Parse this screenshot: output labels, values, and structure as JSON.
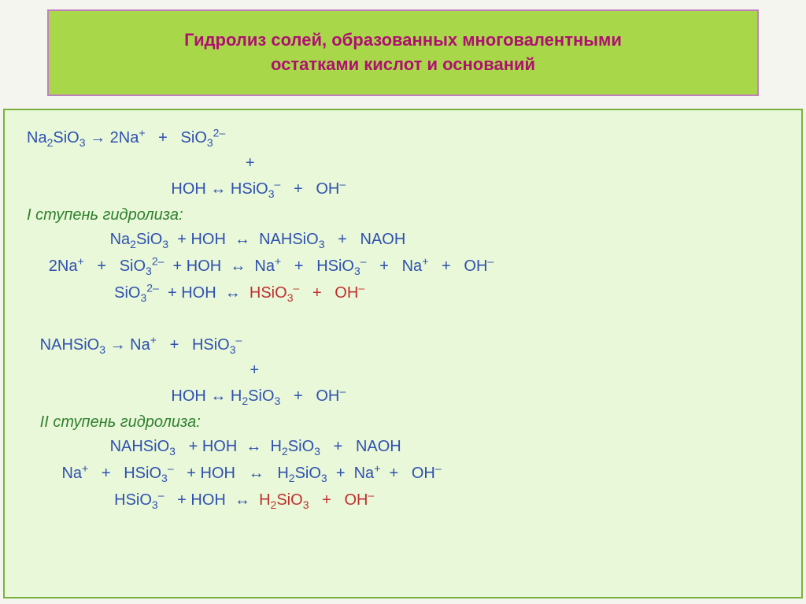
{
  "header": {
    "title_line1": "Гидролиз солей, образованных многовалентными",
    "title_line2": "остатками кислот и оснований"
  },
  "lines": {
    "l1a": "Na",
    "l1b": "SiO",
    "l1c": " → 2Na",
    "l1d": "   +   SiO",
    "l2": "                                                  +",
    "l3a": "                                 HOH ↔ HSiO",
    "l3b": "   +   OH",
    "step1": "I ступень гидролиза:",
    "l4a": "                   Na",
    "l4b": "SiO",
    "l4c": "  + HOH  ↔  NAHSiO",
    "l4d": "   +   NAOH",
    "l5a": "     2Na",
    "l5b": "   +   SiO",
    "l5c": "  + HOH  ↔  Na",
    "l5d": "   +   HSiO",
    "l5e": "   +   Na",
    "l5f": "   +   OH",
    "l6a": "                    SiO",
    "l6b": "  + HOH  ↔  ",
    "l6c": "HSiO",
    "l6d": "   +   OH",
    "l7a": "   NAHSiO",
    "l7b": " → Na",
    "l7c": "   +   HSiO",
    "l8": "                                                   +",
    "l9a": "                                 HOH ↔ H",
    "l9b": "SiO",
    "l9c": "   +   OH",
    "step2": "   II ступень гидролиза:",
    "l10a": "                   NAHSiO",
    "l10b": "   + HOH  ↔  H",
    "l10c": "SiO",
    "l10d": "   +   NAOH",
    "l11a": "        Na",
    "l11b": "   +   HSiO",
    "l11c": "   + HOH   ↔   H",
    "l11d": "SiO",
    "l11e": "  +  Na",
    "l11f": "  +   OH",
    "l12a": "                    HSiO",
    "l12b": "   + HOH  ↔  ",
    "l12c": "H",
    "l12d": "SiO",
    "l12e": "   +   OH"
  },
  "colors": {
    "header_bg": "#a8d84a",
    "header_border": "#c080c0",
    "header_text": "#b01070",
    "content_bg": "#e8f8d8",
    "content_border": "#7ab040",
    "blue": "#3050b0",
    "green": "#308030",
    "red": "#c03030"
  }
}
